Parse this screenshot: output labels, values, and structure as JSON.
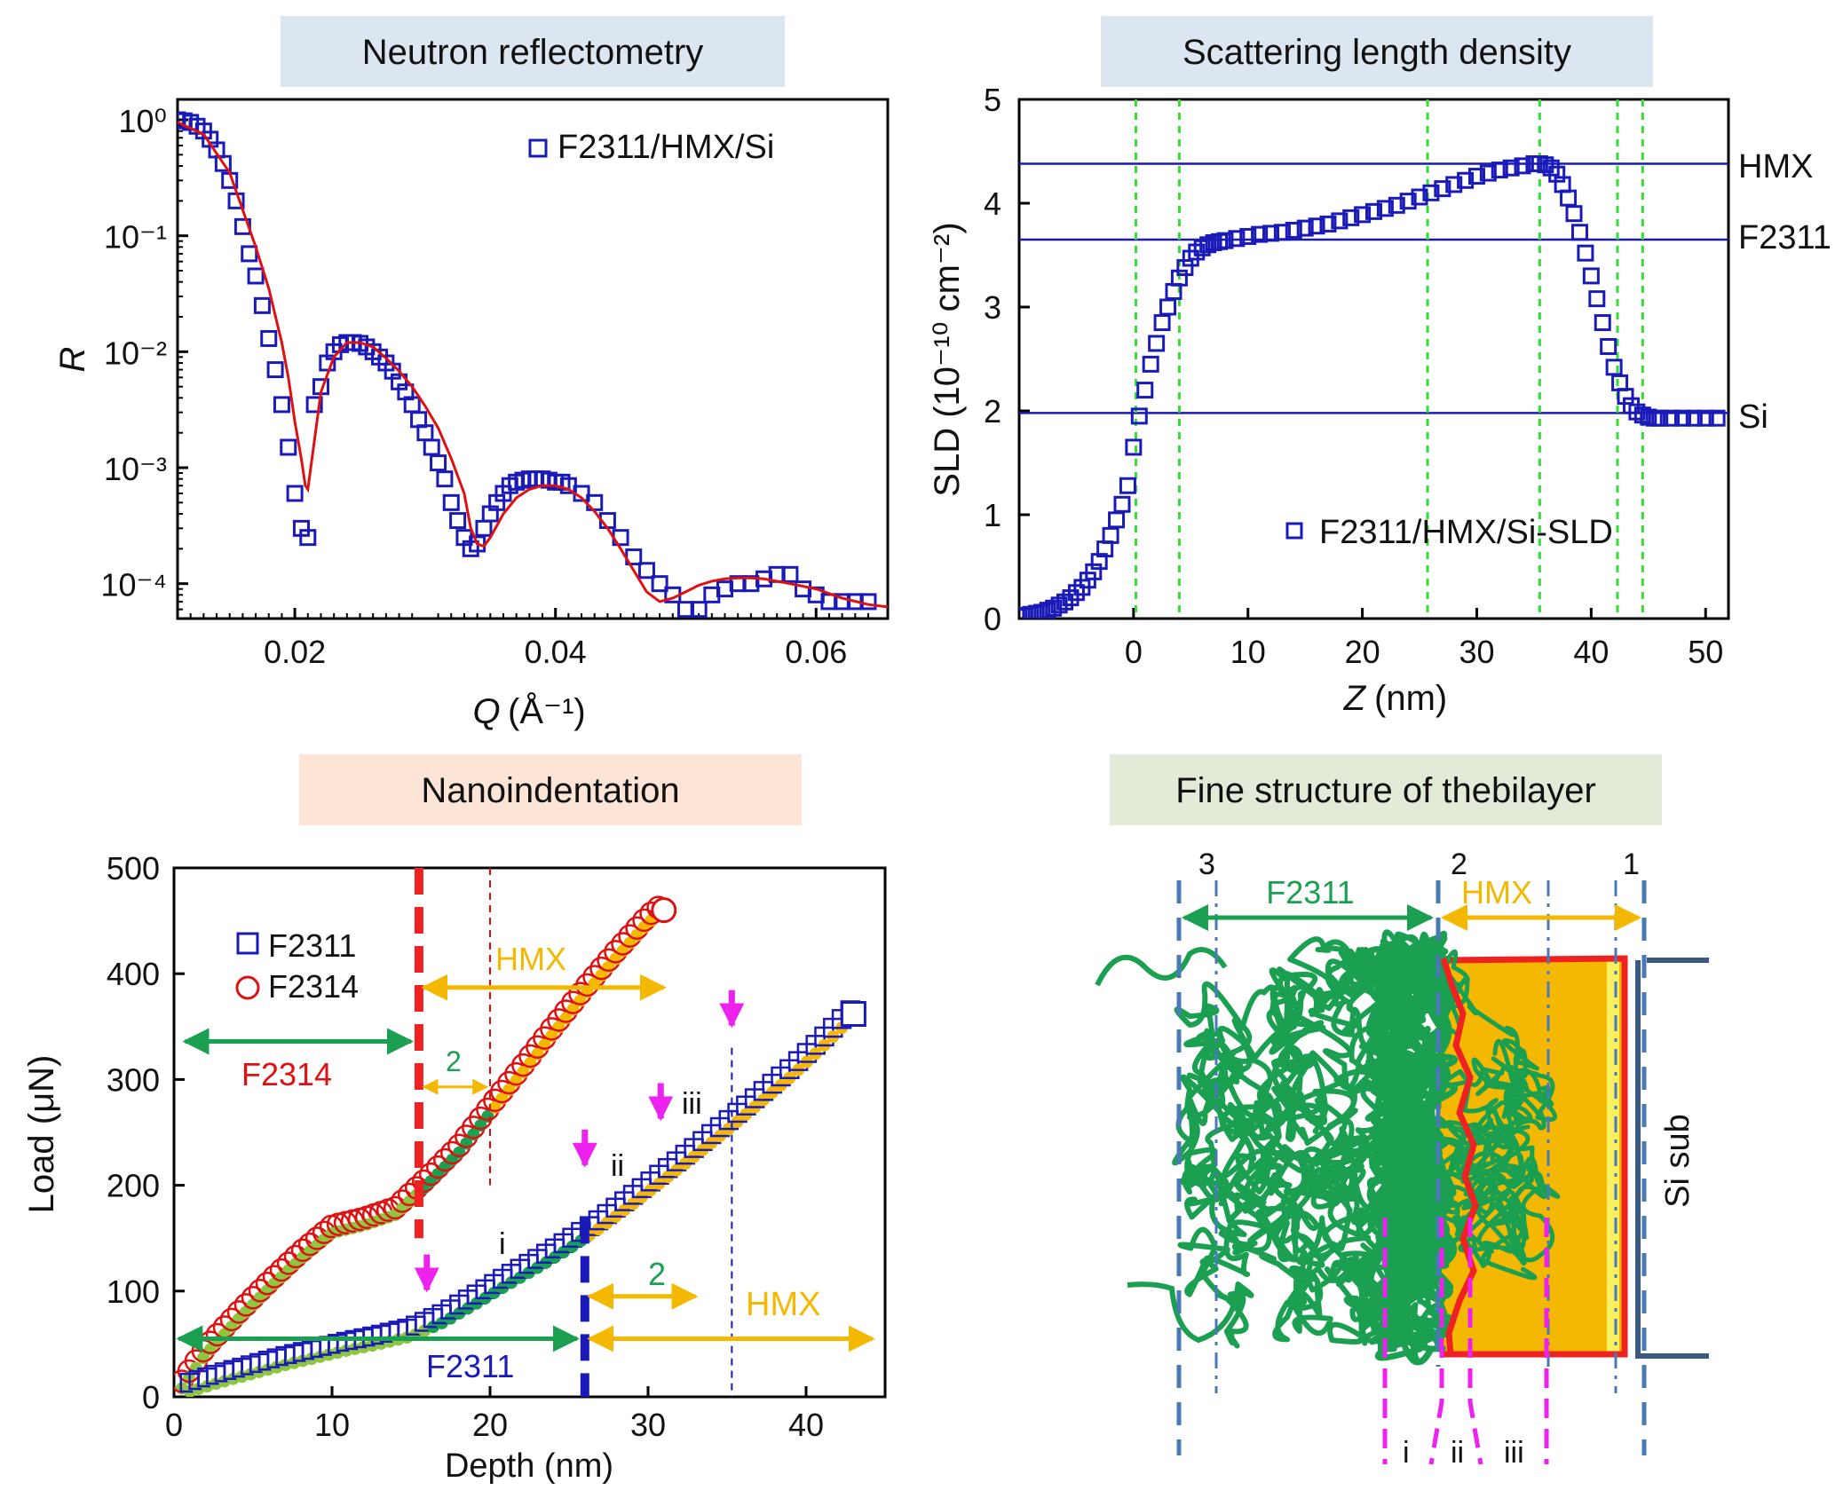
{
  "chart_data": [
    {
      "type": "scatter",
      "panel_label": "Neutron reflectometry",
      "title": "",
      "xlabel": "Q (Å⁻¹)",
      "ylabel": "R",
      "yscale": "log",
      "xlim": [
        0.011,
        0.0655
      ],
      "ylim": [
        5e-05,
        1.5
      ],
      "xticks": [
        0.02,
        0.04,
        0.06
      ],
      "xtick_labels": [
        "0.02",
        "0.04",
        "0.06"
      ],
      "yticks": [
        1,
        0.1,
        0.01,
        0.001,
        0.0001
      ],
      "ytick_labels": [
        "10⁰",
        "10⁻¹",
        "10⁻²",
        "10⁻³",
        "10⁻⁴"
      ],
      "legend": "top-right",
      "series": [
        {
          "name": "F2311/HMX/Si",
          "marker": "open-square",
          "color": "#1a1ab8",
          "x": [
            0.011,
            0.0115,
            0.012,
            0.0125,
            0.013,
            0.0135,
            0.014,
            0.0145,
            0.015,
            0.0155,
            0.016,
            0.0165,
            0.017,
            0.0175,
            0.018,
            0.0185,
            0.019,
            0.0195,
            0.02,
            0.0205,
            0.021,
            0.0215,
            0.022,
            0.0225,
            0.023,
            0.0235,
            0.024,
            0.0245,
            0.025,
            0.0255,
            0.026,
            0.0265,
            0.027,
            0.0275,
            0.028,
            0.0285,
            0.029,
            0.0295,
            0.03,
            0.0305,
            0.031,
            0.0315,
            0.032,
            0.0325,
            0.033,
            0.0335,
            0.034,
            0.0345,
            0.035,
            0.0355,
            0.036,
            0.0365,
            0.037,
            0.0375,
            0.038,
            0.0385,
            0.039,
            0.0395,
            0.04,
            0.0405,
            0.041,
            0.042,
            0.043,
            0.044,
            0.045,
            0.046,
            0.047,
            0.048,
            0.049,
            0.05,
            0.051,
            0.052,
            0.053,
            0.054,
            0.055,
            0.056,
            0.057,
            0.058,
            0.059,
            0.06,
            0.061,
            0.062,
            0.063,
            0.064
          ],
          "y": [
            1.0,
            0.98,
            0.95,
            0.88,
            0.8,
            0.68,
            0.55,
            0.42,
            0.3,
            0.2,
            0.12,
            0.07,
            0.045,
            0.025,
            0.013,
            0.007,
            0.0035,
            0.0015,
            0.0006,
            0.0003,
            0.00025,
            0.0035,
            0.005,
            0.008,
            0.01,
            0.0115,
            0.012,
            0.012,
            0.0118,
            0.011,
            0.01,
            0.009,
            0.008,
            0.0068,
            0.0055,
            0.0045,
            0.0035,
            0.0026,
            0.002,
            0.0015,
            0.0011,
            0.0008,
            0.0005,
            0.00035,
            0.00025,
            0.0002,
            0.00022,
            0.0003,
            0.0004,
            0.0005,
            0.0006,
            0.0007,
            0.00075,
            0.00078,
            0.0008,
            0.0008,
            0.0008,
            0.00078,
            0.00075,
            0.00075,
            0.0007,
            0.0006,
            0.0005,
            0.00035,
            0.00025,
            0.00017,
            0.00013,
            0.0001,
            8e-05,
            6e-05,
            6e-05,
            8e-05,
            9e-05,
            0.0001,
            0.0001,
            0.00011,
            0.00012,
            0.00012,
            9e-05,
            8e-05,
            7e-05,
            7e-05,
            7e-05,
            7e-05
          ]
        },
        {
          "name": "fit",
          "line": true,
          "color": "#dd1111",
          "x": [
            0.011,
            0.013,
            0.015,
            0.017,
            0.018,
            0.019,
            0.0195,
            0.02,
            0.0205,
            0.0208,
            0.021,
            0.0215,
            0.022,
            0.023,
            0.024,
            0.025,
            0.026,
            0.027,
            0.028,
            0.029,
            0.03,
            0.031,
            0.032,
            0.033,
            0.0335,
            0.034,
            0.0345,
            0.035,
            0.036,
            0.037,
            0.038,
            0.039,
            0.04,
            0.041,
            0.042,
            0.043,
            0.044,
            0.045,
            0.046,
            0.047,
            0.048,
            0.049,
            0.05,
            0.051,
            0.052,
            0.053,
            0.054,
            0.055,
            0.056,
            0.058,
            0.06,
            0.062,
            0.064,
            0.0655
          ],
          "y": [
            0.95,
            0.75,
            0.35,
            0.08,
            0.035,
            0.012,
            0.006,
            0.0025,
            0.0012,
            0.0007,
            0.00065,
            0.0017,
            0.0045,
            0.009,
            0.012,
            0.012,
            0.011,
            0.0088,
            0.0068,
            0.005,
            0.0034,
            0.0022,
            0.0012,
            0.0006,
            0.0003,
            0.00022,
            0.00021,
            0.00025,
            0.0004,
            0.00055,
            0.00065,
            0.0007,
            0.0007,
            0.00065,
            0.00055,
            0.00042,
            0.0003,
            0.0002,
            0.00013,
            8.5e-05,
            7e-05,
            7.5e-05,
            8.5e-05,
            9.7e-05,
            0.000105,
            0.00011,
            0.000112,
            0.000112,
            0.00011,
            0.0001,
            9e-05,
            7.5e-05,
            6.6e-05,
            6.3e-05
          ]
        }
      ]
    },
    {
      "type": "scatter",
      "panel_label": "Scattering length density",
      "title": "",
      "xlabel": "Z (nm)",
      "ylabel": "SLD (10⁻¹⁰ cm⁻²)",
      "xlim": [
        -10,
        52
      ],
      "ylim": [
        0,
        5
      ],
      "xticks": [
        0,
        10,
        20,
        30,
        40,
        50
      ],
      "yticks": [
        0,
        1,
        2,
        3,
        4,
        5
      ],
      "legend": "bottom-right",
      "reference_lines": [
        {
          "label": "HMX",
          "y": 4.38
        },
        {
          "label": "F2311",
          "y": 3.65
        },
        {
          "label": "Si",
          "y": 1.98
        }
      ],
      "vertical_dotted_lines": [
        0.2,
        4.0,
        25.7,
        35.5,
        42.3,
        44.5
      ],
      "series": [
        {
          "name": "F2311/HMX/Si-SLD",
          "marker": "open-square",
          "color": "#1a1ab8",
          "x": [
            -10,
            -9.5,
            -9,
            -8.5,
            -8,
            -7.5,
            -7,
            -6.5,
            -6,
            -5.5,
            -5,
            -4.5,
            -4,
            -3.5,
            -3,
            -2.5,
            -2,
            -1.5,
            -1,
            -0.5,
            0,
            0.5,
            1,
            1.5,
            2,
            2.5,
            3,
            3.5,
            4,
            4.5,
            5,
            5.5,
            6,
            6.5,
            7,
            7.5,
            8,
            9,
            10,
            11,
            12,
            13,
            14,
            15,
            16,
            17,
            18,
            19,
            20,
            21,
            22,
            23,
            24,
            25,
            26,
            27,
            28,
            29,
            30,
            31,
            32,
            33,
            34,
            35,
            35.5,
            36,
            36.5,
            37,
            37.5,
            38,
            38.5,
            39,
            39.5,
            40,
            40.5,
            41,
            41.5,
            42,
            42.5,
            43,
            43.5,
            44,
            44.5,
            45,
            45.5,
            46,
            47,
            48,
            49,
            50,
            51
          ],
          "y": [
            0.02,
            0.03,
            0.04,
            0.05,
            0.06,
            0.08,
            0.1,
            0.13,
            0.16,
            0.2,
            0.25,
            0.3,
            0.37,
            0.45,
            0.55,
            0.67,
            0.8,
            0.95,
            1.1,
            1.28,
            1.65,
            1.95,
            2.2,
            2.45,
            2.65,
            2.85,
            3.0,
            3.15,
            3.28,
            3.38,
            3.47,
            3.53,
            3.57,
            3.6,
            3.62,
            3.63,
            3.64,
            3.66,
            3.68,
            3.7,
            3.71,
            3.72,
            3.74,
            3.76,
            3.78,
            3.8,
            3.83,
            3.86,
            3.89,
            3.92,
            3.95,
            3.98,
            4.02,
            4.06,
            4.1,
            4.14,
            4.18,
            4.22,
            4.26,
            4.29,
            4.32,
            4.34,
            4.36,
            4.38,
            4.38,
            4.37,
            4.34,
            4.28,
            4.18,
            4.05,
            3.9,
            3.72,
            3.52,
            3.3,
            3.08,
            2.85,
            2.62,
            2.42,
            2.27,
            2.14,
            2.05,
            1.99,
            1.96,
            1.94,
            1.93,
            1.93,
            1.93,
            1.93,
            1.93,
            1.93,
            1.93
          ]
        }
      ]
    },
    {
      "type": "scatter",
      "panel_label": "Nanoindentation",
      "title": "",
      "xlabel": "Depth (nm)",
      "ylabel": "Load (μN)",
      "xlim": [
        0,
        45
      ],
      "ylim": [
        0,
        500
      ],
      "xticks": [
        0,
        10,
        20,
        30,
        40
      ],
      "yticks": [
        0,
        100,
        200,
        300,
        400,
        500
      ],
      "legend": "top-left",
      "series": [
        {
          "name": "F2311",
          "marker": "open-square",
          "color": "#1a1ab8",
          "x": [
            1,
            3,
            5,
            7,
            9,
            11,
            13,
            15,
            17,
            19,
            21,
            23,
            25,
            27,
            29,
            31,
            33,
            35,
            37,
            39,
            41,
            43
          ],
          "y": [
            5,
            14,
            22,
            30,
            37,
            44,
            50,
            57,
            70,
            87,
            105,
            122,
            140,
            160,
            182,
            205,
            228,
            252,
            277,
            302,
            330,
            360
          ]
        },
        {
          "name": "F2314",
          "marker": "open-circle",
          "color": "#dd1111",
          "x": [
            0.5,
            2,
            4,
            6,
            8,
            10,
            12,
            14,
            16,
            18,
            20,
            22,
            24,
            26,
            28,
            30,
            31
          ],
          "y": [
            8,
            40,
            72,
            102,
            130,
            155,
            162,
            172,
            200,
            230,
            268,
            305,
            343,
            380,
            415,
            448,
            460
          ]
        }
      ],
      "annotations": {
        "labels": [
          "F2311",
          "F2314",
          "HMX",
          "2",
          "i",
          "ii",
          "iii"
        ],
        "vertical_lines_depth": [
          15.5,
          20,
          26,
          35.3
        ],
        "arrow_depths": [
          16,
          26,
          30.8,
          35.3
        ]
      }
    }
  ],
  "panels": {
    "reflectometry": {
      "header": "Neutron reflectometry",
      "legend_label": "F2311/HMX/Si",
      "ylabel": "R",
      "xlabel_q": "Q",
      "xlabel_unit": "(Å⁻¹)"
    },
    "sld": {
      "header": "Scattering length density",
      "legend_label": "F2311/HMX/Si-SLD",
      "ylabel": "SLD (10⁻¹⁰ cm⁻²)",
      "xlabel_z": "Z",
      "xlabel_unit": "(nm)",
      "ref_hmx": "HMX",
      "ref_f2311": "F2311",
      "ref_si": "Si"
    },
    "nano": {
      "header": "Nanoindentation",
      "legend_f2311": "F2311",
      "legend_f2314": "F2314",
      "ylabel": "Load (μN)",
      "xlabel": "Depth (nm)",
      "lbl_hmx_top": "HMX",
      "lbl_f2314": "F2314",
      "lbl_two_top": "2",
      "lbl_i": "i",
      "lbl_ii": "ii",
      "lbl_iii": "iii",
      "lbl_two_bottom": "2",
      "lbl_hmx_bottom": "HMX",
      "lbl_f2311": "F2311"
    },
    "fine": {
      "header": "Fine structure of thebilayer",
      "lbl_3": "3",
      "lbl_2": "2",
      "lbl_1": "1",
      "lbl_f2311": "F2311",
      "lbl_hmx": "HMX",
      "lbl_si_sub": "Si sub",
      "lbl_i": "i",
      "lbl_ii": "ii",
      "lbl_iii": "iii"
    }
  },
  "colors": {
    "blue": "#1a1ab8",
    "red": "#dd1111",
    "orange": "#f5b800",
    "green": "#1aa050",
    "lightgreen": "#8dc63f",
    "magenta": "#ee22ee",
    "dashblue": "#4a7ab5"
  }
}
